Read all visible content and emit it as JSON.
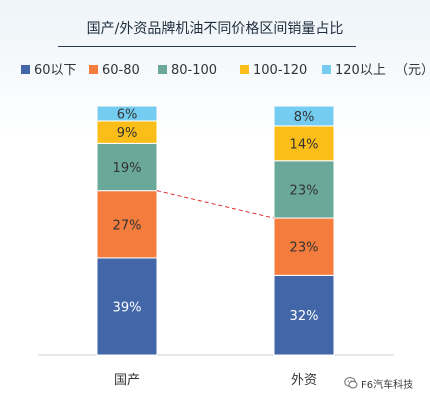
{
  "chart_data": {
    "type": "bar",
    "stacked": true,
    "title": "国产/外资品牌机油不同价格区间销量占比",
    "categories": [
      "国产",
      "外资"
    ],
    "ylim": [
      0,
      100
    ],
    "unit_label": "（元）",
    "series": [
      {
        "name": "60以下",
        "color": "#4266a8",
        "values": [
          39,
          32
        ],
        "labels": [
          "39%",
          "32%"
        ]
      },
      {
        "name": "60-80",
        "color": "#f47c3c",
        "values": [
          27,
          23
        ],
        "labels": [
          "27%",
          "23%"
        ]
      },
      {
        "name": "80-100",
        "color": "#6aa89a",
        "values": [
          19,
          23
        ],
        "labels": [
          "19%",
          "23%"
        ]
      },
      {
        "name": "100-120",
        "color": "#fbbd17",
        "values": [
          9,
          14
        ],
        "labels": [
          "9%",
          "14%"
        ]
      },
      {
        "name": "120以上",
        "color": "#74cdf0",
        "values": [
          6,
          8
        ],
        "labels": [
          "6%",
          "8%"
        ]
      }
    ],
    "connector": {
      "style": "dashed",
      "color": "#e03030",
      "between": "60-80 top"
    }
  },
  "watermark": "F6汽车科技"
}
